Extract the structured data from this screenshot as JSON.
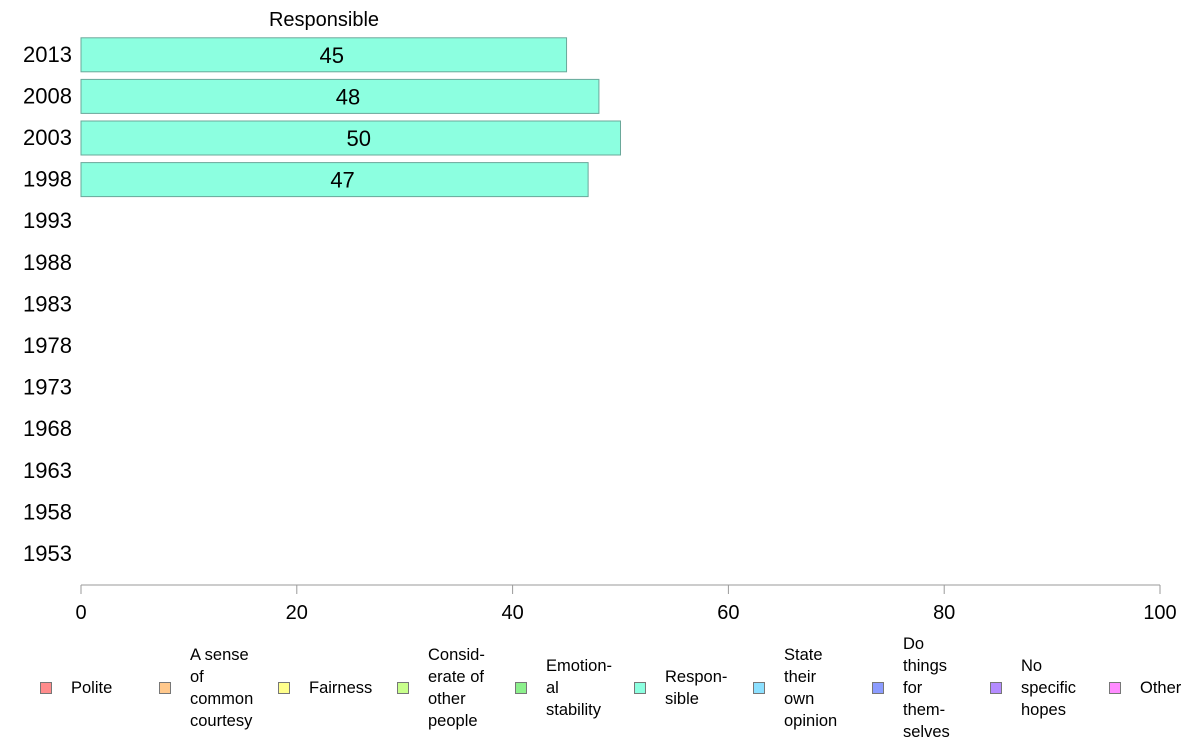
{
  "chart_data": {
    "type": "bar",
    "orientation": "horizontal",
    "title": "Responsible",
    "categories": [
      "2013",
      "2008",
      "2003",
      "1998",
      "1993",
      "1988",
      "1983",
      "1978",
      "1973",
      "1968",
      "1963",
      "1958",
      "1953"
    ],
    "series": [
      {
        "name": "Respon-\nsible",
        "color": "#8cffe0",
        "values": [
          45,
          48,
          50,
          47,
          null,
          null,
          null,
          null,
          null,
          null,
          null,
          null,
          null
        ],
        "data_labels": [
          "45",
          "48",
          "50",
          "47",
          "",
          "",
          "",
          "",
          "",
          "",
          "",
          "",
          ""
        ]
      }
    ],
    "xlim": [
      0,
      100
    ],
    "x_ticks": [
      "0",
      "20",
      "40",
      "60",
      "80",
      "100"
    ],
    "grid": false,
    "legend_position": "bottom",
    "legend": [
      {
        "label": "Polite",
        "color": "#ff8c8c"
      },
      {
        "label": "A sense\nof\ncommon\ncourtesy",
        "color": "#ffc88c"
      },
      {
        "label": "Fairness",
        "color": "#ffff8c"
      },
      {
        "label": "Consid-\nerate of\nother\npeople",
        "color": "#c8ff8c"
      },
      {
        "label": "Emotion-\nal\nstability",
        "color": "#8cf08c"
      },
      {
        "label": "Respon-\nsible",
        "color": "#8cffe0"
      },
      {
        "label": "State\ntheir\nown\nopinion",
        "color": "#8ce0ff"
      },
      {
        "label": "Do\nthings\nfor\nthem-\nselves",
        "color": "#8c9cff"
      },
      {
        "label": "No\nspecific\nhopes",
        "color": "#b48cff"
      },
      {
        "label": "Other",
        "color": "#ff8cff"
      }
    ]
  }
}
